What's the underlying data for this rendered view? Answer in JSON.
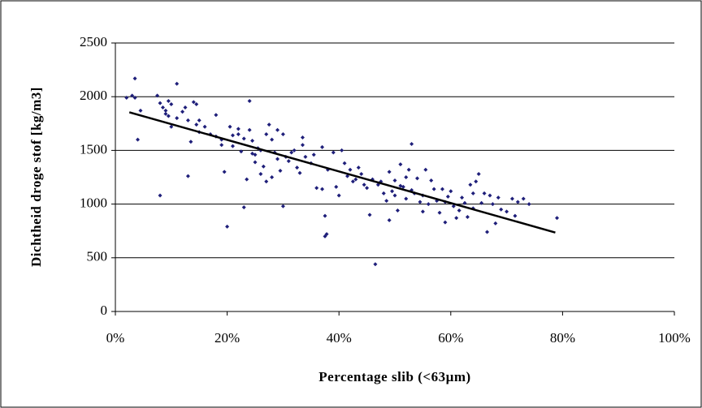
{
  "chart_data": {
    "type": "scatter",
    "x_label": "Percentage slib (<63µm)",
    "y_label": "Dichtheid droge stof [kg/m3]",
    "color": "#1f1f7a",
    "xlim": [
      0,
      100
    ],
    "xticks": [
      {
        "value": 0,
        "label": "0%"
      },
      {
        "value": 20,
        "label": "20%"
      },
      {
        "value": 40,
        "label": "40%"
      },
      {
        "value": 60,
        "label": "60%"
      },
      {
        "value": 80,
        "label": "80%"
      },
      {
        "value": 100,
        "label": "100%"
      }
    ],
    "ylim": [
      0,
      2500
    ],
    "yticks": [
      0,
      500,
      1000,
      1500,
      2000,
      2500
    ],
    "grid": true,
    "trendline": {
      "x": [
        2.5,
        78.7
      ],
      "y": [
        1855,
        735
      ],
      "color": "#000000"
    },
    "x": [
      2,
      3,
      3.5,
      3.5,
      4,
      4.5,
      7.5,
      8,
      8,
      8.5,
      9,
      9,
      9.5,
      9.5,
      10,
      10,
      11,
      11,
      12,
      12.5,
      13,
      13,
      13.5,
      14,
      14.5,
      14.5,
      15,
      15,
      16,
      17,
      18,
      18,
      19,
      19,
      19.5,
      20,
      20.5,
      21,
      21,
      22,
      22,
      22.5,
      23,
      23,
      23.5,
      24,
      24,
      24.5,
      24.5,
      25,
      25,
      25.5,
      26,
      26,
      26.5,
      27,
      27,
      27.5,
      28,
      28,
      28.5,
      29,
      29,
      29.5,
      30,
      30,
      30.5,
      31,
      31.5,
      32,
      32.5,
      33,
      33.5,
      33.5,
      34,
      35,
      35.5,
      36,
      37,
      37,
      37.5,
      37.5,
      37.8,
      38,
      39,
      39.5,
      40,
      40.5,
      41,
      41.5,
      42,
      42.5,
      43,
      43.5,
      44,
      44.5,
      45,
      45.5,
      46,
      46.5,
      47,
      47.5,
      48,
      48.5,
      49,
      49,
      49.5,
      50,
      50,
      50.5,
      51,
      51,
      51.5,
      52,
      52,
      52.5,
      53,
      53,
      53.5,
      54,
      54.5,
      55,
      55,
      55.5,
      56,
      56.5,
      57,
      57.5,
      58,
      58.5,
      59,
      59,
      59.5,
      60,
      60.5,
      61,
      61.5,
      62,
      62.5,
      63,
      63.5,
      64,
      64,
      64.5,
      65,
      65.5,
      66,
      66.5,
      67,
      67.5,
      68,
      68.5,
      69,
      70,
      71,
      71.5,
      72,
      73,
      74,
      79
    ],
    "values": [
      1990,
      2010,
      2170,
      1990,
      1600,
      1870,
      2010,
      1080,
      1940,
      1900,
      1870,
      1840,
      1960,
      1820,
      1720,
      1930,
      2120,
      1800,
      1860,
      1900,
      1780,
      1260,
      1580,
      1950,
      1930,
      1740,
      1780,
      1670,
      1720,
      1650,
      1830,
      1630,
      1550,
      1600,
      1300,
      790,
      1720,
      1540,
      1640,
      1700,
      1650,
      1490,
      970,
      1610,
      1230,
      1960,
      1690,
      1470,
      1590,
      1460,
      1390,
      1520,
      1500,
      1280,
      1350,
      1650,
      1210,
      1740,
      1600,
      1250,
      1480,
      1420,
      1690,
      1310,
      1650,
      980,
      1440,
      1400,
      1480,
      1500,
      1340,
      1290,
      1620,
      1550,
      1440,
      1380,
      1460,
      1150,
      1140,
      1530,
      890,
      700,
      720,
      1320,
      1480,
      1160,
      1080,
      1500,
      1380,
      1260,
      1320,
      1210,
      1230,
      1340,
      1280,
      1180,
      1150,
      900,
      1230,
      440,
      1180,
      1210,
      1100,
      1030,
      1300,
      850,
      1120,
      1080,
      1220,
      940,
      1370,
      1170,
      1160,
      1250,
      1050,
      1320,
      1560,
      1130,
      1100,
      1240,
      1020,
      1080,
      930,
      1320,
      1000,
      1220,
      1140,
      1030,
      920,
      1140,
      1020,
      830,
      1070,
      1120,
      980,
      870,
      940,
      1060,
      1010,
      880,
      1180,
      1100,
      960,
      1210,
      1280,
      1010,
      1100,
      740,
      1080,
      1000,
      820,
      1060,
      950,
      930,
      1050,
      890,
      1020,
      1050,
      1000,
      870
    ]
  }
}
